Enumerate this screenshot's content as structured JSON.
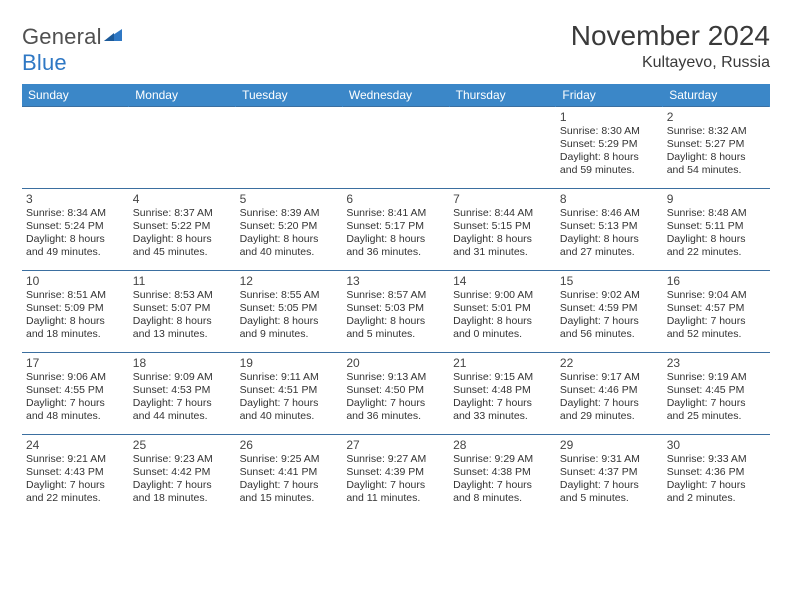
{
  "logo": {
    "word1": "General",
    "word2": "Blue"
  },
  "title": "November 2024",
  "location": "Kultayevo, Russia",
  "colors": {
    "header_bg": "#3b87c8",
    "header_text": "#ffffff",
    "row_border": "#3b6fa0",
    "text": "#333333",
    "logo_gray": "#505050",
    "logo_blue": "#2f78c4",
    "background": "#ffffff"
  },
  "day_labels": [
    "Sunday",
    "Monday",
    "Tuesday",
    "Wednesday",
    "Thursday",
    "Friday",
    "Saturday"
  ],
  "weeks": [
    [
      null,
      null,
      null,
      null,
      null,
      {
        "n": "1",
        "sr": "8:30 AM",
        "ss": "5:29 PM",
        "dl": "8 hours and 59 minutes."
      },
      {
        "n": "2",
        "sr": "8:32 AM",
        "ss": "5:27 PM",
        "dl": "8 hours and 54 minutes."
      }
    ],
    [
      {
        "n": "3",
        "sr": "8:34 AM",
        "ss": "5:24 PM",
        "dl": "8 hours and 49 minutes."
      },
      {
        "n": "4",
        "sr": "8:37 AM",
        "ss": "5:22 PM",
        "dl": "8 hours and 45 minutes."
      },
      {
        "n": "5",
        "sr": "8:39 AM",
        "ss": "5:20 PM",
        "dl": "8 hours and 40 minutes."
      },
      {
        "n": "6",
        "sr": "8:41 AM",
        "ss": "5:17 PM",
        "dl": "8 hours and 36 minutes."
      },
      {
        "n": "7",
        "sr": "8:44 AM",
        "ss": "5:15 PM",
        "dl": "8 hours and 31 minutes."
      },
      {
        "n": "8",
        "sr": "8:46 AM",
        "ss": "5:13 PM",
        "dl": "8 hours and 27 minutes."
      },
      {
        "n": "9",
        "sr": "8:48 AM",
        "ss": "5:11 PM",
        "dl": "8 hours and 22 minutes."
      }
    ],
    [
      {
        "n": "10",
        "sr": "8:51 AM",
        "ss": "5:09 PM",
        "dl": "8 hours and 18 minutes."
      },
      {
        "n": "11",
        "sr": "8:53 AM",
        "ss": "5:07 PM",
        "dl": "8 hours and 13 minutes."
      },
      {
        "n": "12",
        "sr": "8:55 AM",
        "ss": "5:05 PM",
        "dl": "8 hours and 9 minutes."
      },
      {
        "n": "13",
        "sr": "8:57 AM",
        "ss": "5:03 PM",
        "dl": "8 hours and 5 minutes."
      },
      {
        "n": "14",
        "sr": "9:00 AM",
        "ss": "5:01 PM",
        "dl": "8 hours and 0 minutes."
      },
      {
        "n": "15",
        "sr": "9:02 AM",
        "ss": "4:59 PM",
        "dl": "7 hours and 56 minutes."
      },
      {
        "n": "16",
        "sr": "9:04 AM",
        "ss": "4:57 PM",
        "dl": "7 hours and 52 minutes."
      }
    ],
    [
      {
        "n": "17",
        "sr": "9:06 AM",
        "ss": "4:55 PM",
        "dl": "7 hours and 48 minutes."
      },
      {
        "n": "18",
        "sr": "9:09 AM",
        "ss": "4:53 PM",
        "dl": "7 hours and 44 minutes."
      },
      {
        "n": "19",
        "sr": "9:11 AM",
        "ss": "4:51 PM",
        "dl": "7 hours and 40 minutes."
      },
      {
        "n": "20",
        "sr": "9:13 AM",
        "ss": "4:50 PM",
        "dl": "7 hours and 36 minutes."
      },
      {
        "n": "21",
        "sr": "9:15 AM",
        "ss": "4:48 PM",
        "dl": "7 hours and 33 minutes."
      },
      {
        "n": "22",
        "sr": "9:17 AM",
        "ss": "4:46 PM",
        "dl": "7 hours and 29 minutes."
      },
      {
        "n": "23",
        "sr": "9:19 AM",
        "ss": "4:45 PM",
        "dl": "7 hours and 25 minutes."
      }
    ],
    [
      {
        "n": "24",
        "sr": "9:21 AM",
        "ss": "4:43 PM",
        "dl": "7 hours and 22 minutes."
      },
      {
        "n": "25",
        "sr": "9:23 AM",
        "ss": "4:42 PM",
        "dl": "7 hours and 18 minutes."
      },
      {
        "n": "26",
        "sr": "9:25 AM",
        "ss": "4:41 PM",
        "dl": "7 hours and 15 minutes."
      },
      {
        "n": "27",
        "sr": "9:27 AM",
        "ss": "4:39 PM",
        "dl": "7 hours and 11 minutes."
      },
      {
        "n": "28",
        "sr": "9:29 AM",
        "ss": "4:38 PM",
        "dl": "7 hours and 8 minutes."
      },
      {
        "n": "29",
        "sr": "9:31 AM",
        "ss": "4:37 PM",
        "dl": "7 hours and 5 minutes."
      },
      {
        "n": "30",
        "sr": "9:33 AM",
        "ss": "4:36 PM",
        "dl": "7 hours and 2 minutes."
      }
    ]
  ],
  "labels": {
    "sunrise": "Sunrise: ",
    "sunset": "Sunset: ",
    "daylight": "Daylight: "
  }
}
